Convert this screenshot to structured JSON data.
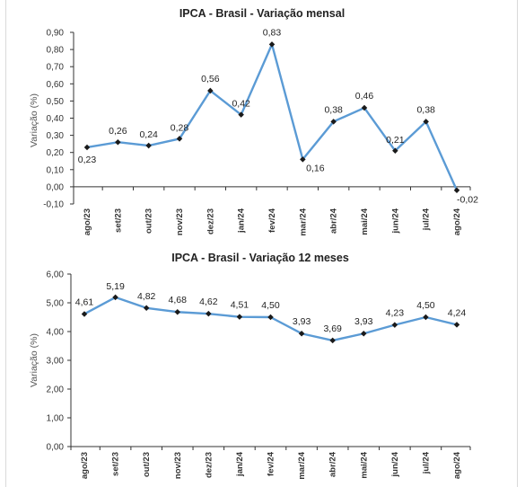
{
  "chart_data": [
    {
      "type": "line",
      "title": "IPCA - Brasil - Variação mensal",
      "ylabel": "Variação (%)",
      "xlabel": "",
      "categories": [
        "ago/23",
        "set/23",
        "out/23",
        "nov/23",
        "dez/23",
        "jan/24",
        "fev/24",
        "mar/24",
        "abr/24",
        "mai/24",
        "jun/24",
        "jul/24",
        "ago/24"
      ],
      "series": [
        {
          "values": [
            0.23,
            0.26,
            0.24,
            0.28,
            0.56,
            0.42,
            0.83,
            0.16,
            0.38,
            0.46,
            0.21,
            0.38,
            -0.02
          ]
        }
      ],
      "data_labels": [
        "0,23",
        "0,26",
        "0,24",
        "0,28",
        "0,56",
        "0,42",
        "0,83",
        "0,16",
        "0,38",
        "0,46",
        "0,21",
        "0,38",
        "-0,02"
      ],
      "ylim": [
        -0.1,
        0.9
      ],
      "yticks": [
        -0.1,
        0.0,
        0.1,
        0.2,
        0.3,
        0.4,
        0.5,
        0.6,
        0.7,
        0.8,
        0.9
      ],
      "ytick_labels": [
        "-0,10",
        "0,00",
        "0,10",
        "0,20",
        "0,30",
        "0,40",
        "0,50",
        "0,60",
        "0,70",
        "0,80",
        "0,90"
      ],
      "grid": false,
      "line_color": "#5b9bd5",
      "marker_color": "#1a1a1a"
    },
    {
      "type": "line",
      "title": "IPCA - Brasil - Variação 12 meses",
      "ylabel": "Variação (%)",
      "xlabel": "",
      "categories": [
        "ago/23",
        "set/23",
        "out/23",
        "nov/23",
        "dez/23",
        "jan/24",
        "fev/24",
        "mar/24",
        "abr/24",
        "mai/24",
        "jun/24",
        "jul/24",
        "ago/24"
      ],
      "series": [
        {
          "values": [
            4.61,
            5.19,
            4.82,
            4.68,
            4.62,
            4.51,
            4.5,
            3.93,
            3.69,
            3.93,
            4.23,
            4.5,
            4.24
          ]
        }
      ],
      "data_labels": [
        "4,61",
        "5,19",
        "4,82",
        "4,68",
        "4,62",
        "4,51",
        "4,50",
        "3,93",
        "3,69",
        "3,93",
        "4,23",
        "4,50",
        "4,24"
      ],
      "ylim": [
        0,
        6
      ],
      "yticks": [
        0,
        1,
        2,
        3,
        4,
        5,
        6
      ],
      "ytick_labels": [
        "0,00",
        "1,00",
        "2,00",
        "3,00",
        "4,00",
        "5,00",
        "6,00"
      ],
      "grid": false,
      "line_color": "#5b9bd5",
      "marker_color": "#1a1a1a"
    }
  ]
}
